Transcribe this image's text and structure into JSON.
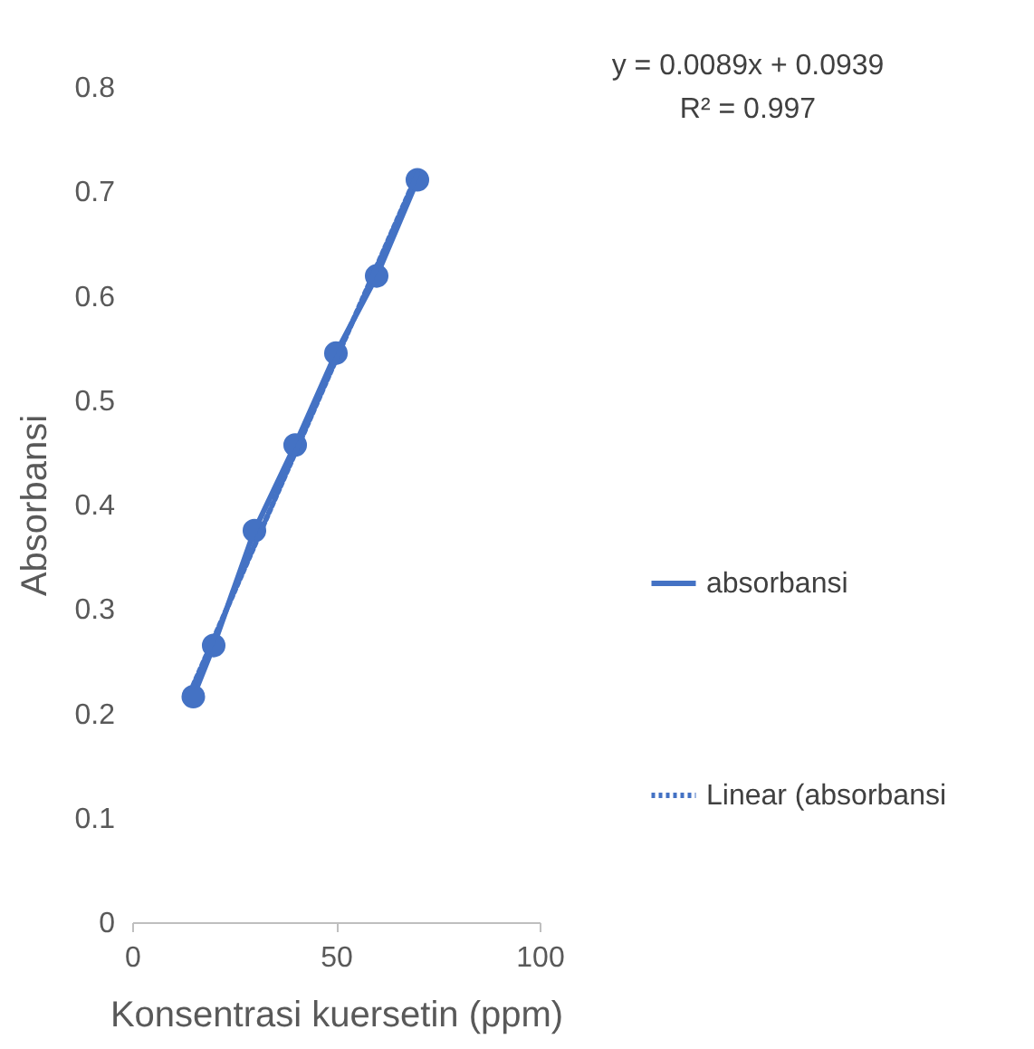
{
  "chart_data": {
    "type": "line",
    "xlabel": "Konsentrasi kuersetin (ppm)",
    "ylabel": "Absorbansi",
    "annotations": [
      "y = 0.0089x + 0.0939",
      "R² = 0.997"
    ],
    "xlim": [
      0,
      100
    ],
    "xticks": [
      0,
      50,
      100
    ],
    "ylim": [
      0,
      0.8
    ],
    "yticks": [
      {
        "value": 0,
        "label": "0"
      },
      0.1,
      0.2,
      0.3,
      0.4,
      0.5,
      0.6,
      0.7,
      0.8
    ],
    "grid": false,
    "legend": "right",
    "series": [
      {
        "name": "absorbansi",
        "color": "#4472c4",
        "marker": "circle",
        "line_style": "solid",
        "x": [
          15,
          20,
          30,
          40,
          50,
          60,
          70
        ],
        "values": [
          0.216,
          0.265,
          0.375,
          0.457,
          0.545,
          0.619,
          0.711
        ]
      },
      {
        "name": "Linear (absorbansi",
        "color": "#4472c4",
        "marker": "none",
        "line_style": "dotted",
        "x": [
          15,
          70
        ],
        "values": [
          0.227,
          0.717
        ]
      }
    ]
  }
}
